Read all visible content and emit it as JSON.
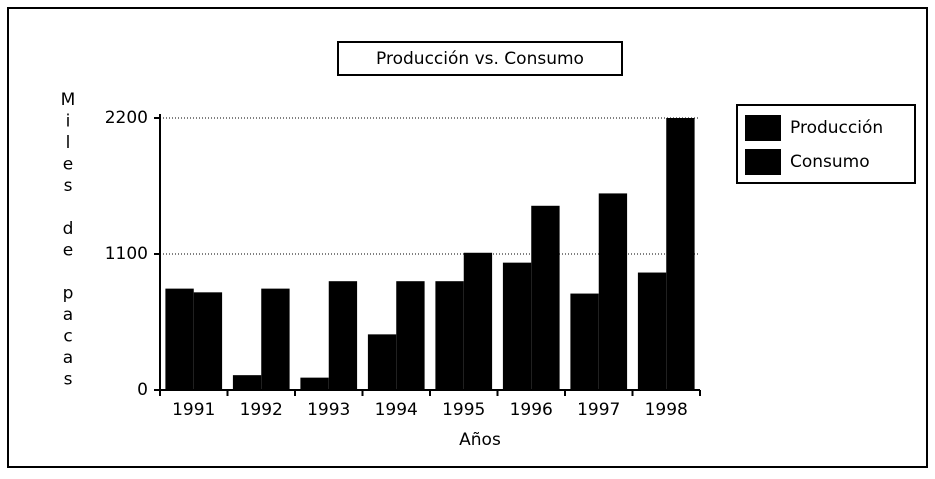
{
  "chart_data": {
    "type": "bar",
    "title": "Producción vs. Consumo",
    "x_label": "Años",
    "y_label": "Miles de pacas",
    "categories": [
      "1991",
      "1992",
      "1993",
      "1994",
      "1995",
      "1996",
      "1997",
      "1998"
    ],
    "series": [
      {
        "name": "Producción",
        "color": "#000000",
        "values": [
          820,
          120,
          100,
          450,
          880,
          1030,
          780,
          950
        ]
      },
      {
        "name": "Consumo",
        "color": "#000000",
        "values": [
          790,
          820,
          880,
          880,
          1110,
          1490,
          1590,
          2200
        ]
      }
    ],
    "ylim": [
      0,
      2200
    ],
    "yticks": [
      0,
      1100,
      2200
    ],
    "grid": true
  }
}
